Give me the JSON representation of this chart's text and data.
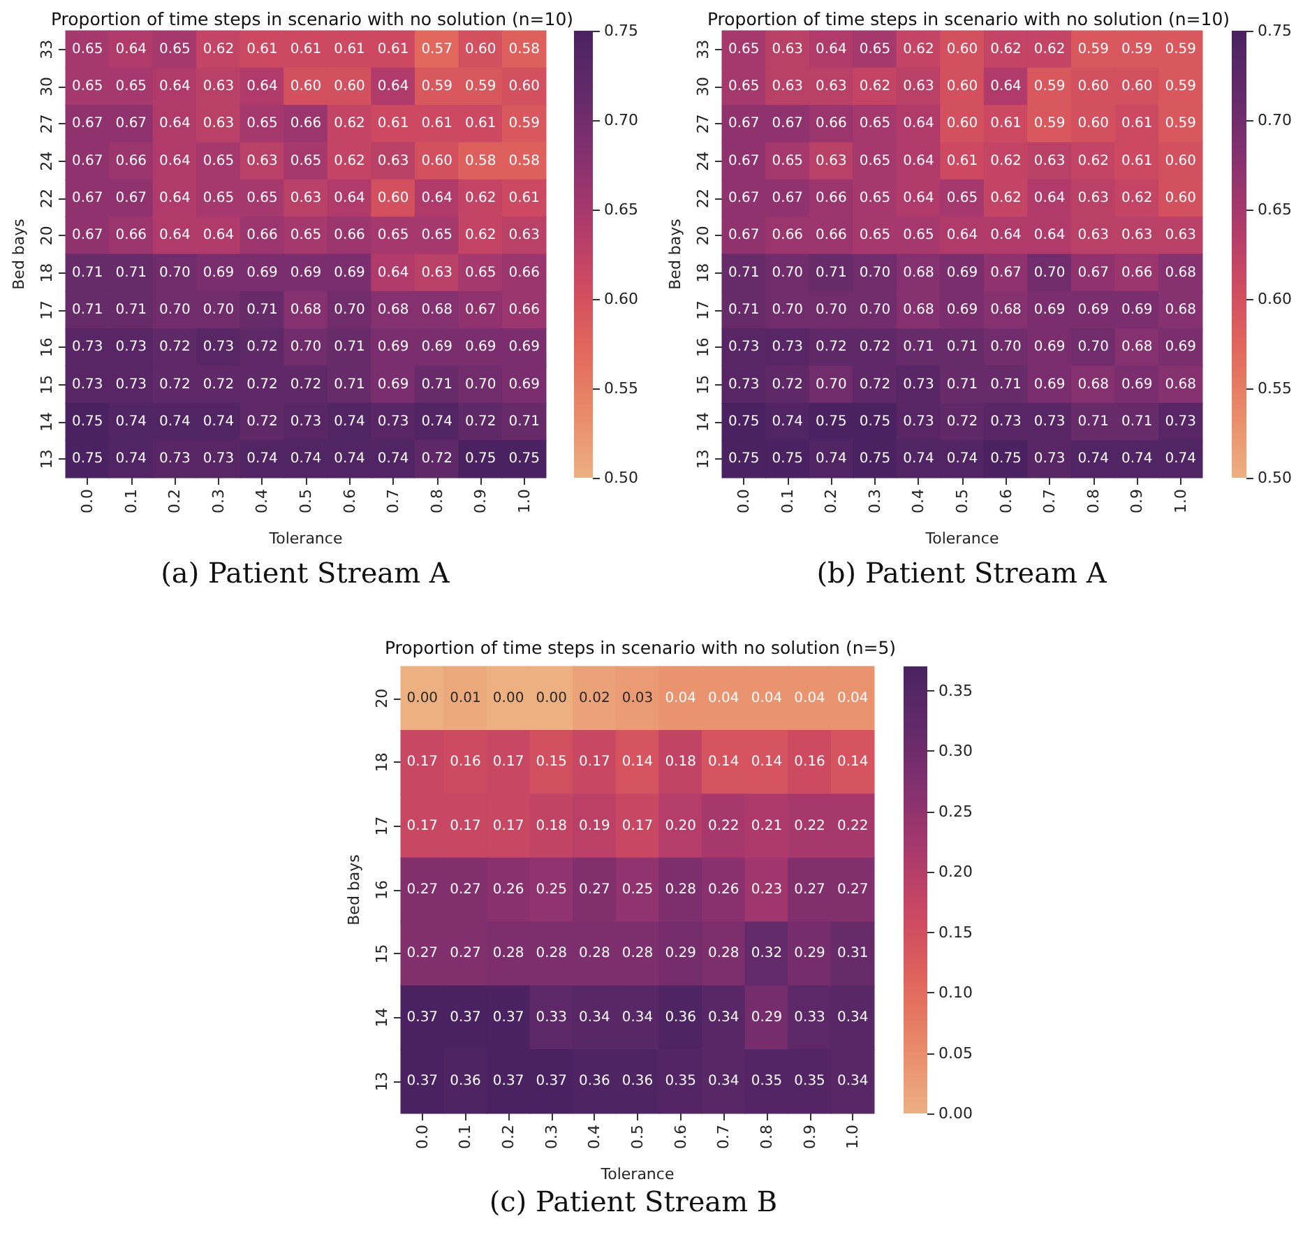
{
  "chart_data": [
    {
      "type": "heatmap",
      "title": "Proportion of time steps in scenario with no solution (n=10)",
      "xlabel": "Tolerance",
      "ylabel": "Bed bays",
      "categories": [
        "0.0",
        "0.1",
        "0.2",
        "0.3",
        "0.4",
        "0.5",
        "0.6",
        "0.7",
        "0.8",
        "0.9",
        "1.0"
      ],
      "y_categories": [
        "33",
        "30",
        "27",
        "24",
        "22",
        "20",
        "18",
        "17",
        "16",
        "15",
        "14",
        "13"
      ],
      "cells": [
        [
          0.65,
          0.64,
          0.65,
          0.62,
          0.61,
          0.61,
          0.61,
          0.61,
          0.57,
          0.6,
          0.58
        ],
        [
          0.65,
          0.65,
          0.64,
          0.63,
          0.64,
          0.6,
          0.6,
          0.64,
          0.59,
          0.59,
          0.6
        ],
        [
          0.67,
          0.67,
          0.64,
          0.63,
          0.65,
          0.66,
          0.62,
          0.61,
          0.61,
          0.61,
          0.59
        ],
        [
          0.67,
          0.66,
          0.64,
          0.65,
          0.63,
          0.65,
          0.62,
          0.63,
          0.6,
          0.58,
          0.58
        ],
        [
          0.67,
          0.67,
          0.64,
          0.65,
          0.65,
          0.63,
          0.64,
          0.6,
          0.64,
          0.62,
          0.61
        ],
        [
          0.67,
          0.66,
          0.64,
          0.64,
          0.66,
          0.65,
          0.66,
          0.65,
          0.65,
          0.62,
          0.63
        ],
        [
          0.71,
          0.71,
          0.7,
          0.69,
          0.69,
          0.69,
          0.69,
          0.64,
          0.63,
          0.65,
          0.66
        ],
        [
          0.71,
          0.71,
          0.7,
          0.7,
          0.71,
          0.68,
          0.7,
          0.68,
          0.68,
          0.67,
          0.66
        ],
        [
          0.73,
          0.73,
          0.72,
          0.73,
          0.72,
          0.7,
          0.71,
          0.69,
          0.69,
          0.69,
          0.69
        ],
        [
          0.73,
          0.73,
          0.72,
          0.72,
          0.72,
          0.72,
          0.71,
          0.69,
          0.71,
          0.7,
          0.69
        ],
        [
          0.75,
          0.74,
          0.74,
          0.74,
          0.72,
          0.73,
          0.74,
          0.73,
          0.74,
          0.72,
          0.71
        ],
        [
          0.75,
          0.74,
          0.73,
          0.73,
          0.74,
          0.74,
          0.74,
          0.74,
          0.72,
          0.75,
          0.75
        ]
      ],
      "cell_labels": [
        [
          "0.65",
          "0.64",
          "0.65",
          "0.62",
          "0.61",
          "0.61",
          "0.61",
          "0.61",
          "0.57",
          "0.60",
          "0.58"
        ],
        [
          "0.65",
          "0.65",
          "0.64",
          "0.63",
          "0.64",
          "0.60",
          "0.60",
          "0.64",
          "0.59",
          "0.59",
          "0.60"
        ],
        [
          "0.67",
          "0.67",
          "0.64",
          "0.63",
          "0.65",
          "0.66",
          "0.62",
          "0.61",
          "0.61",
          "0.61",
          "0.59"
        ],
        [
          "0.67",
          "0.66",
          "0.64",
          "0.65",
          "0.63",
          "0.65",
          "0.62",
          "0.63",
          "0.60",
          "0.58",
          "0.58"
        ],
        [
          "0.67",
          "0.67",
          "0.64",
          "0.65",
          "0.65",
          "0.63",
          "0.64",
          "0.60",
          "0.64",
          "0.62",
          "0.61"
        ],
        [
          "0.67",
          "0.66",
          "0.64",
          "0.64",
          "0.66",
          "0.65",
          "0.66",
          "0.65",
          "0.65",
          "0.62",
          "0.63"
        ],
        [
          "0.71",
          "0.71",
          "0.70",
          "0.69",
          "0.69",
          "0.69",
          "0.69",
          "0.64",
          "0.63",
          "0.65",
          "0.66"
        ],
        [
          "0.71",
          "0.71",
          "0.70",
          "0.70",
          "0.71",
          "0.68",
          "0.70",
          "0.68",
          "0.68",
          "0.67",
          "0.66"
        ],
        [
          "0.73",
          "0.73",
          "0.72",
          "0.73",
          "0.72",
          "0.70",
          "0.71",
          "0.69",
          "0.69",
          "0.69",
          "0.69"
        ],
        [
          "0.73",
          "0.73",
          "0.72",
          "0.72",
          "0.72",
          "0.72",
          "0.71",
          "0.69",
          "0.71",
          "0.70",
          "0.69"
        ],
        [
          "0.75",
          "0.74",
          "0.74",
          "0.74",
          "0.72",
          "0.73",
          "0.74",
          "0.73",
          "0.74",
          "0.72",
          "0.71"
        ],
        [
          "0.75",
          "0.74",
          "0.73",
          "0.73",
          "0.74",
          "0.74",
          "0.74",
          "0.74",
          "0.72",
          "0.75",
          "0.75"
        ]
      ],
      "clim": [
        0.5,
        0.75
      ],
      "cticks": [
        {
          "value": 0.5,
          "label": "0.50"
        },
        {
          "value": 0.55,
          "label": "0.55"
        },
        {
          "value": 0.6,
          "label": "0.60"
        },
        {
          "value": 0.65,
          "label": "0.65"
        },
        {
          "value": 0.7,
          "label": "0.70"
        },
        {
          "value": 0.75,
          "label": "0.75"
        }
      ],
      "data_labels": true,
      "annotations": [
        "(a) Patient Stream A"
      ]
    },
    {
      "type": "heatmap",
      "title": "Proportion of time steps in scenario with no solution (n=10)",
      "xlabel": "Tolerance",
      "ylabel": "Bed bays",
      "categories": [
        "0.0",
        "0.1",
        "0.2",
        "0.3",
        "0.4",
        "0.5",
        "0.6",
        "0.7",
        "0.8",
        "0.9",
        "1.0"
      ],
      "y_categories": [
        "33",
        "30",
        "27",
        "24",
        "22",
        "20",
        "18",
        "17",
        "16",
        "15",
        "14",
        "13"
      ],
      "cells": [
        [
          0.65,
          0.63,
          0.64,
          0.65,
          0.62,
          0.6,
          0.62,
          0.62,
          0.59,
          0.59,
          0.59
        ],
        [
          0.65,
          0.63,
          0.63,
          0.62,
          0.63,
          0.6,
          0.64,
          0.59,
          0.6,
          0.6,
          0.59
        ],
        [
          0.67,
          0.67,
          0.66,
          0.65,
          0.64,
          0.6,
          0.61,
          0.59,
          0.6,
          0.61,
          0.59
        ],
        [
          0.67,
          0.65,
          0.63,
          0.65,
          0.64,
          0.61,
          0.62,
          0.63,
          0.62,
          0.61,
          0.6
        ],
        [
          0.67,
          0.67,
          0.66,
          0.65,
          0.64,
          0.65,
          0.62,
          0.64,
          0.63,
          0.62,
          0.6
        ],
        [
          0.67,
          0.66,
          0.66,
          0.65,
          0.65,
          0.64,
          0.64,
          0.64,
          0.63,
          0.63,
          0.63
        ],
        [
          0.71,
          0.7,
          0.71,
          0.7,
          0.68,
          0.69,
          0.67,
          0.7,
          0.67,
          0.66,
          0.68
        ],
        [
          0.71,
          0.7,
          0.7,
          0.7,
          0.68,
          0.69,
          0.68,
          0.69,
          0.69,
          0.69,
          0.68
        ],
        [
          0.73,
          0.73,
          0.72,
          0.72,
          0.71,
          0.71,
          0.7,
          0.69,
          0.7,
          0.68,
          0.69
        ],
        [
          0.73,
          0.72,
          0.7,
          0.72,
          0.73,
          0.71,
          0.71,
          0.69,
          0.68,
          0.69,
          0.68
        ],
        [
          0.75,
          0.74,
          0.75,
          0.75,
          0.73,
          0.72,
          0.73,
          0.73,
          0.71,
          0.71,
          0.73
        ],
        [
          0.75,
          0.75,
          0.74,
          0.75,
          0.74,
          0.74,
          0.75,
          0.73,
          0.74,
          0.74,
          0.74
        ]
      ],
      "cell_labels": [
        [
          "0.65",
          "0.63",
          "0.64",
          "0.65",
          "0.62",
          "0.60",
          "0.62",
          "0.62",
          "0.59",
          "0.59",
          "0.59"
        ],
        [
          "0.65",
          "0.63",
          "0.63",
          "0.62",
          "0.63",
          "0.60",
          "0.64",
          "0.59",
          "0.60",
          "0.60",
          "0.59"
        ],
        [
          "0.67",
          "0.67",
          "0.66",
          "0.65",
          "0.64",
          "0.60",
          "0.61",
          "0.59",
          "0.60",
          "0.61",
          "0.59"
        ],
        [
          "0.67",
          "0.65",
          "0.63",
          "0.65",
          "0.64",
          "0.61",
          "0.62",
          "0.63",
          "0.62",
          "0.61",
          "0.60"
        ],
        [
          "0.67",
          "0.67",
          "0.66",
          "0.65",
          "0.64",
          "0.65",
          "0.62",
          "0.64",
          "0.63",
          "0.62",
          "0.60"
        ],
        [
          "0.67",
          "0.66",
          "0.66",
          "0.65",
          "0.65",
          "0.64",
          "0.64",
          "0.64",
          "0.63",
          "0.63",
          "0.63"
        ],
        [
          "0.71",
          "0.70",
          "0.71",
          "0.70",
          "0.68",
          "0.69",
          "0.67",
          "0.70",
          "0.67",
          "0.66",
          "0.68"
        ],
        [
          "0.71",
          "0.70",
          "0.70",
          "0.70",
          "0.68",
          "0.69",
          "0.68",
          "0.69",
          "0.69",
          "0.69",
          "0.68"
        ],
        [
          "0.73",
          "0.73",
          "0.72",
          "0.72",
          "0.71",
          "0.71",
          "0.70",
          "0.69",
          "0.70",
          "0.68",
          "0.69"
        ],
        [
          "0.73",
          "0.72",
          "0.70",
          "0.72",
          "0.73",
          "0.71",
          "0.71",
          "0.69",
          "0.68",
          "0.69",
          "0.68"
        ],
        [
          "0.75",
          "0.74",
          "0.75",
          "0.75",
          "0.73",
          "0.72",
          "0.73",
          "0.73",
          "0.71",
          "0.71",
          "0.73"
        ],
        [
          "0.75",
          "0.75",
          "0.74",
          "0.75",
          "0.74",
          "0.74",
          "0.75",
          "0.73",
          "0.74",
          "0.74",
          "0.74"
        ]
      ],
      "clim": [
        0.5,
        0.75
      ],
      "cticks": [
        {
          "value": 0.5,
          "label": "0.50"
        },
        {
          "value": 0.55,
          "label": "0.55"
        },
        {
          "value": 0.6,
          "label": "0.60"
        },
        {
          "value": 0.65,
          "label": "0.65"
        },
        {
          "value": 0.7,
          "label": "0.70"
        },
        {
          "value": 0.75,
          "label": "0.75"
        }
      ],
      "data_labels": true,
      "annotations": [
        "(b) Patient Stream A"
      ]
    },
    {
      "type": "heatmap",
      "title": "Proportion of time steps in scenario with no solution (n=5)",
      "xlabel": "Tolerance",
      "ylabel": "Bed bays",
      "categories": [
        "0.0",
        "0.1",
        "0.2",
        "0.3",
        "0.4",
        "0.5",
        "0.6",
        "0.7",
        "0.8",
        "0.9",
        "1.0"
      ],
      "y_categories": [
        "20",
        "18",
        "17",
        "16",
        "15",
        "14",
        "13"
      ],
      "cells": [
        [
          0.0,
          0.01,
          0.0,
          0.0,
          0.02,
          0.03,
          0.04,
          0.04,
          0.04,
          0.04,
          0.04
        ],
        [
          0.17,
          0.16,
          0.17,
          0.15,
          0.17,
          0.14,
          0.18,
          0.14,
          0.14,
          0.16,
          0.14
        ],
        [
          0.17,
          0.17,
          0.17,
          0.18,
          0.19,
          0.17,
          0.2,
          0.22,
          0.21,
          0.22,
          0.22
        ],
        [
          0.27,
          0.27,
          0.26,
          0.25,
          0.27,
          0.25,
          0.28,
          0.26,
          0.23,
          0.27,
          0.27
        ],
        [
          0.27,
          0.27,
          0.28,
          0.28,
          0.28,
          0.28,
          0.29,
          0.28,
          0.32,
          0.29,
          0.31
        ],
        [
          0.37,
          0.37,
          0.37,
          0.33,
          0.34,
          0.34,
          0.36,
          0.34,
          0.29,
          0.33,
          0.34
        ],
        [
          0.37,
          0.36,
          0.37,
          0.37,
          0.36,
          0.36,
          0.35,
          0.34,
          0.35,
          0.35,
          0.34
        ]
      ],
      "cell_labels": [
        [
          "0.00",
          "0.01",
          "0.00",
          "0.00",
          "0.02",
          "0.03",
          "0.04",
          "0.04",
          "0.04",
          "0.04",
          "0.04"
        ],
        [
          "0.17",
          "0.16",
          "0.17",
          "0.15",
          "0.17",
          "0.14",
          "0.18",
          "0.14",
          "0.14",
          "0.16",
          "0.14"
        ],
        [
          "0.17",
          "0.17",
          "0.17",
          "0.18",
          "0.19",
          "0.17",
          "0.20",
          "0.22",
          "0.21",
          "0.22",
          "0.22"
        ],
        [
          "0.27",
          "0.27",
          "0.26",
          "0.25",
          "0.27",
          "0.25",
          "0.28",
          "0.26",
          "0.23",
          "0.27",
          "0.27"
        ],
        [
          "0.27",
          "0.27",
          "0.28",
          "0.28",
          "0.28",
          "0.28",
          "0.29",
          "0.28",
          "0.32",
          "0.29",
          "0.31"
        ],
        [
          "0.37",
          "0.37",
          "0.37",
          "0.33",
          "0.34",
          "0.34",
          "0.36",
          "0.34",
          "0.29",
          "0.33",
          "0.34"
        ],
        [
          "0.37",
          "0.36",
          "0.37",
          "0.37",
          "0.36",
          "0.36",
          "0.35",
          "0.34",
          "0.35",
          "0.35",
          "0.34"
        ]
      ],
      "clim": [
        0,
        0.37
      ],
      "cticks": [
        {
          "value": 0,
          "label": "0.00"
        },
        {
          "value": 0.05,
          "label": "0.05"
        },
        {
          "value": 0.1,
          "label": "0.10"
        },
        {
          "value": 0.15,
          "label": "0.15"
        },
        {
          "value": 0.2,
          "label": "0.20"
        },
        {
          "value": 0.25,
          "label": "0.25"
        },
        {
          "value": 0.3,
          "label": "0.30"
        },
        {
          "value": 0.35,
          "label": "0.35"
        }
      ],
      "data_labels": true,
      "annotations": [
        "(c) Patient Stream B"
      ]
    }
  ]
}
